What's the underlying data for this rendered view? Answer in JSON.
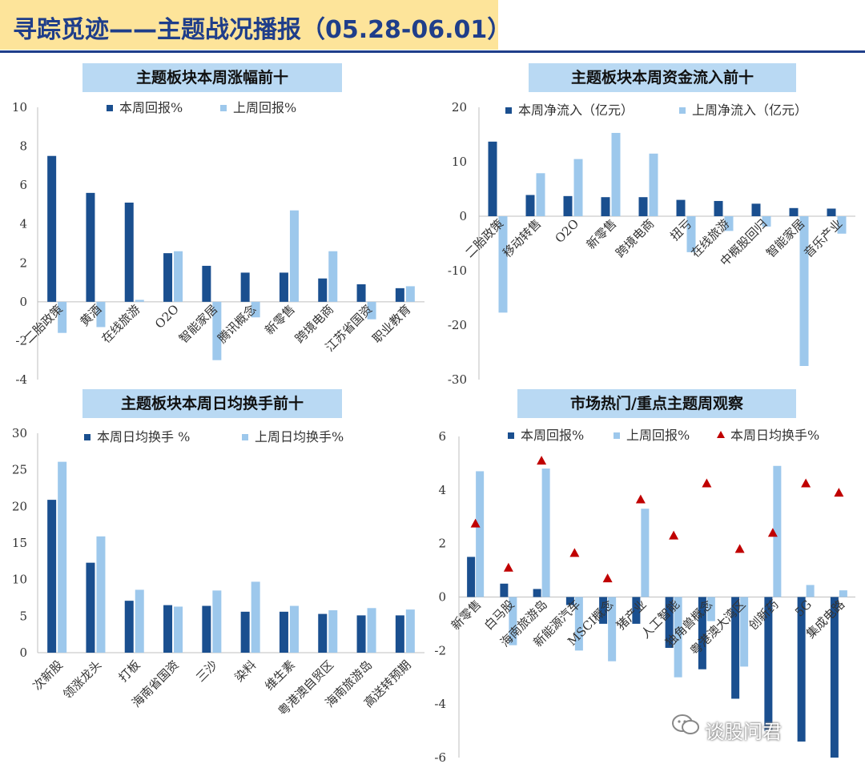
{
  "header": {
    "title": "寻踪觅迹——主题战况播报（05.28-06.01）"
  },
  "watermark": {
    "text": "谈股问君",
    "icon": "wechat-icon"
  },
  "colors": {
    "dark": "#1a4f8f",
    "light": "#9dc8ec",
    "red": "#c00000",
    "title_bg": "#b9d9f3",
    "header_bg": "#fde49a"
  },
  "chart_data": [
    {
      "type": "bar",
      "title": "主题板块本周涨幅前十",
      "categories": [
        "二胎政策",
        "黄酒",
        "在线旅游",
        "O2O",
        "智能家居",
        "腾讯概念",
        "新零售",
        "跨境电商",
        "江苏省国资",
        "职业教育"
      ],
      "series": [
        {
          "name": "本周回报%",
          "values": [
            7.5,
            5.6,
            5.1,
            2.5,
            1.85,
            1.5,
            1.5,
            1.2,
            0.9,
            0.7
          ]
        },
        {
          "name": "上周回报%",
          "values": [
            -1.6,
            -1.3,
            0.1,
            2.6,
            -3.0,
            -0.8,
            4.7,
            2.6,
            -0.9,
            0.8
          ]
        }
      ],
      "ylim": [
        -4,
        10
      ],
      "yticks": [
        -4,
        -2,
        0,
        2,
        4,
        6,
        8,
        10
      ],
      "legend": "top"
    },
    {
      "type": "bar",
      "title": "主题板块本周资金流入前十",
      "categories": [
        "二胎政策",
        "移动转售",
        "O2O",
        "新零售",
        "跨境电商",
        "扭亏",
        "在线旅游",
        "中概股回归",
        "智能家居",
        "音乐产业"
      ],
      "series": [
        {
          "name": "本周净流入（亿元）",
          "values": [
            13.7,
            3.9,
            3.7,
            3.5,
            3.5,
            3.0,
            2.8,
            2.3,
            1.5,
            1.4
          ]
        },
        {
          "name": "上周净流入（亿元）",
          "values": [
            -17.7,
            7.9,
            10.5,
            15.3,
            11.5,
            -6.6,
            -2.7,
            -1.9,
            -27.5,
            -3.2
          ]
        }
      ],
      "ylim": [
        -30,
        20
      ],
      "yticks": [
        -30,
        -20,
        -10,
        0,
        10,
        20
      ],
      "legend": "top"
    },
    {
      "type": "bar",
      "title": "主题板块本周日均换手前十",
      "categories": [
        "次新股",
        "领涨龙头",
        "打板",
        "海南省国资",
        "三沙",
        "染料",
        "维生素",
        "粤港澳自贸区",
        "海南旅游岛",
        "高送转预期"
      ],
      "series": [
        {
          "name": "本周日均换手 %",
          "values": [
            20.9,
            12.3,
            7.1,
            6.5,
            6.4,
            5.6,
            5.6,
            5.3,
            5.1,
            5.1
          ]
        },
        {
          "name": "上周日均换手%",
          "values": [
            26.1,
            15.9,
            8.6,
            6.3,
            8.5,
            9.7,
            6.4,
            5.8,
            6.1,
            5.9
          ]
        }
      ],
      "ylim": [
        0,
        30
      ],
      "yticks": [
        0,
        5,
        10,
        15,
        20,
        25,
        30
      ],
      "legend": "top"
    },
    {
      "type": "bar",
      "title": "市场热门/重点主题周观察",
      "categories": [
        "新零售",
        "白马股",
        "海南旅游岛",
        "新能源汽车",
        "MSCI概念",
        "猪产业",
        "人工智能",
        "独角兽概念",
        "粤港澳大湾区",
        "创新药",
        "5G",
        "集成电路"
      ],
      "series": [
        {
          "name": "本周回报%",
          "values": [
            1.5,
            0.5,
            0.3,
            -0.3,
            -1.0,
            -1.0,
            -1.9,
            -2.7,
            -3.8,
            -5.0,
            -5.4,
            -6.0
          ]
        },
        {
          "name": "上周回报%",
          "values": [
            4.7,
            -1.8,
            4.8,
            -2.0,
            -2.4,
            3.3,
            -3.0,
            -0.9,
            -2.6,
            4.9,
            0.45,
            0.25
          ]
        },
        {
          "name": "本周日均换手%",
          "values": [
            2.75,
            1.1,
            5.1,
            1.65,
            0.7,
            3.65,
            2.3,
            4.25,
            1.8,
            2.4,
            4.25,
            3.9
          ]
        }
      ],
      "ylim": [
        -6,
        6
      ],
      "yticks": [
        -6,
        -4,
        -2,
        0,
        2,
        4,
        6
      ],
      "legend": "top"
    }
  ]
}
